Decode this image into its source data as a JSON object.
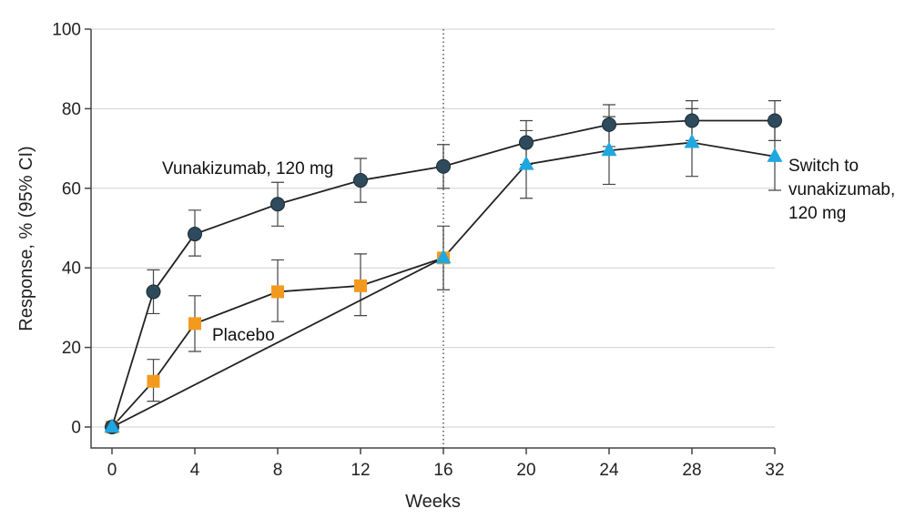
{
  "chart_data": {
    "type": "line",
    "xlabel": "Weeks",
    "ylabel": "Response, % (95% CI)",
    "xlim": [
      0,
      32
    ],
    "ylim": [
      0,
      100
    ],
    "xticks": [
      0,
      4,
      8,
      12,
      16,
      20,
      24,
      28,
      32
    ],
    "yticks": [
      0,
      20,
      40,
      60,
      80,
      100
    ],
    "grid": "horizontal",
    "reference_line_x": 16,
    "series": [
      {
        "name": "Vunakizumab, 120 mg",
        "label_lines": [
          "Vunakizumab, 120 mg"
        ],
        "marker": "circle",
        "color": "#2e4a5c",
        "points": [
          {
            "x": 0,
            "y": 0
          },
          {
            "x": 2,
            "y": 34,
            "lo": 28.5,
            "hi": 39.5
          },
          {
            "x": 4,
            "y": 48.5,
            "lo": 43,
            "hi": 54.5
          },
          {
            "x": 8,
            "y": 56,
            "lo": 50.5,
            "hi": 61.5
          },
          {
            "x": 12,
            "y": 62,
            "lo": 56.5,
            "hi": 67.5
          },
          {
            "x": 16,
            "y": 65.5,
            "lo": 60,
            "hi": 71
          },
          {
            "x": 20,
            "y": 71.5,
            "lo": 66,
            "hi": 77
          },
          {
            "x": 24,
            "y": 76,
            "lo": 70.5,
            "hi": 81
          },
          {
            "x": 28,
            "y": 77,
            "lo": 72,
            "hi": 82
          },
          {
            "x": 32,
            "y": 77,
            "lo": 72,
            "hi": 82
          }
        ]
      },
      {
        "name": "Placebo",
        "label_lines": [
          "Placebo"
        ],
        "marker": "square",
        "color": "#f39a1e",
        "points": [
          {
            "x": 0,
            "y": 0
          },
          {
            "x": 2,
            "y": 11.5,
            "lo": 6.5,
            "hi": 17
          },
          {
            "x": 4,
            "y": 26,
            "lo": 19,
            "hi": 33
          },
          {
            "x": 8,
            "y": 34,
            "lo": 26.5,
            "hi": 42
          },
          {
            "x": 12,
            "y": 35.5,
            "lo": 28,
            "hi": 43.5
          },
          {
            "x": 16,
            "y": 42.5,
            "lo": 34.5,
            "hi": 50.5
          }
        ]
      },
      {
        "name": "Switch to vunakizumab, 120 mg",
        "label_lines": [
          "Switch to",
          "vunakizumab,",
          "120 mg"
        ],
        "marker": "triangle",
        "color": "#1fa8e0",
        "points": [
          {
            "x": 0,
            "y": 0
          },
          {
            "x": 16,
            "y": 42.5
          },
          {
            "x": 20,
            "y": 66,
            "lo": 57.5,
            "hi": 74.5
          },
          {
            "x": 24,
            "y": 69.5,
            "lo": 61,
            "hi": 78
          },
          {
            "x": 28,
            "y": 71.5,
            "lo": 63,
            "hi": 80
          },
          {
            "x": 32,
            "y": 68,
            "lo": 59.5,
            "hi": 76.5
          }
        ]
      }
    ]
  }
}
